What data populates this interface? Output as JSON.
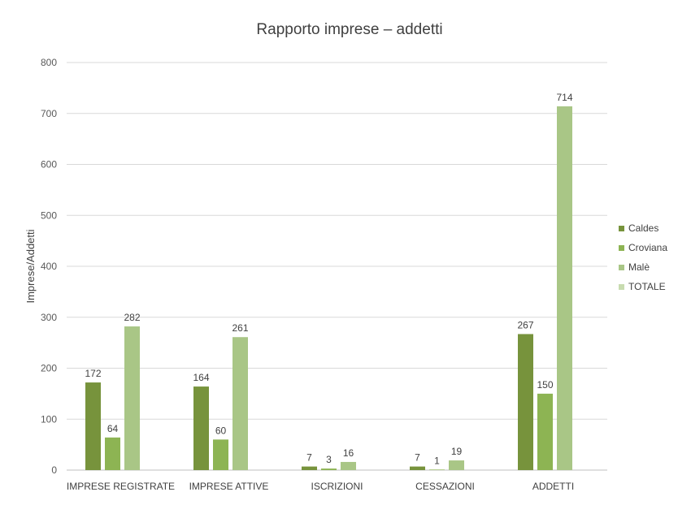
{
  "chart_data": {
    "type": "bar",
    "title": "Rapporto imprese – addetti",
    "xlabel": "",
    "ylabel": "Imprese/Addetti",
    "ylim": [
      0,
      800
    ],
    "yticks": [
      0,
      100,
      200,
      300,
      400,
      500,
      600,
      700,
      800
    ],
    "grid": true,
    "legend_position": "right",
    "categories": [
      "IMPRESE REGISTRATE",
      "IMPRESE ATTIVE",
      "ISCRIZIONI",
      "CESSAZIONI",
      "ADDETTI"
    ],
    "series": [
      {
        "name": "Caldes",
        "color": "#77933c",
        "values": [
          172,
          164,
          7,
          7,
          267
        ]
      },
      {
        "name": "Croviana",
        "color": "#8db453",
        "values": [
          64,
          60,
          3,
          1,
          150
        ]
      },
      {
        "name": "Malè",
        "color": "#a9c686",
        "values": [
          282,
          261,
          16,
          19,
          714
        ]
      },
      {
        "name": "TOTALE",
        "color": "#c8dcb0",
        "values": [
          null,
          null,
          null,
          null,
          null
        ]
      }
    ]
  }
}
